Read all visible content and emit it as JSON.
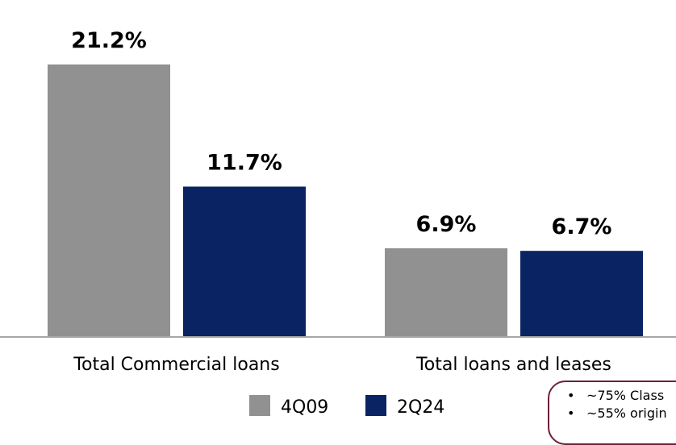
{
  "chart_data": {
    "type": "bar",
    "categories": [
      "Total Commercial loans",
      "Total loans and leases"
    ],
    "series": [
      {
        "name": "4Q09",
        "values": [
          21.2,
          6.9
        ],
        "labels": [
          "21.2%",
          "6.9%"
        ],
        "color": "#919191"
      },
      {
        "name": "2Q24",
        "values": [
          11.7,
          6.7
        ],
        "labels": [
          "11.7%",
          "6.7%"
        ],
        "color": "#0a2463"
      }
    ],
    "title": "",
    "xlabel": "",
    "ylabel": "",
    "ylim": [
      0,
      21.2
    ],
    "grid": false,
    "legend_position": "bottom-center",
    "baseline_color": "#a6a6a6"
  },
  "callout": {
    "border_color": "#6d1f3c",
    "items": [
      "~75% Class",
      "~55% origin"
    ]
  }
}
